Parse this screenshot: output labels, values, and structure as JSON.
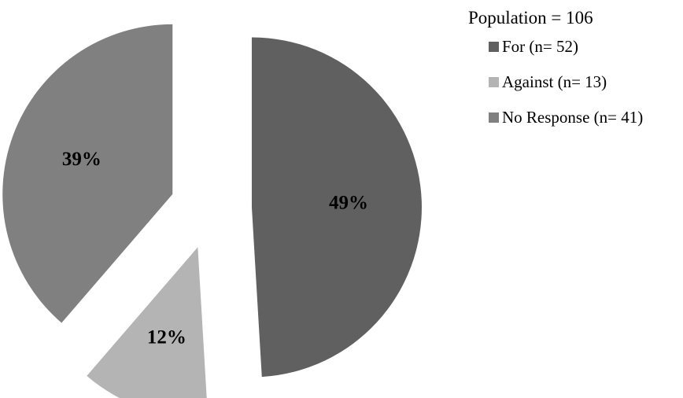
{
  "chart_data": {
    "type": "pie",
    "title": "",
    "legend_title": "Population = 106",
    "legend_placement": "right",
    "slices": [
      {
        "name": "For (n= 52)",
        "percent_label": "49%",
        "value": 52,
        "color": "#606060"
      },
      {
        "name": "Against (n= 13)",
        "percent_label": "12%",
        "value": 13,
        "color": "#b4b4b4"
      },
      {
        "name": "No Response (n= 41)",
        "percent_label": "39%",
        "value": 41,
        "color": "#808080"
      }
    ]
  }
}
